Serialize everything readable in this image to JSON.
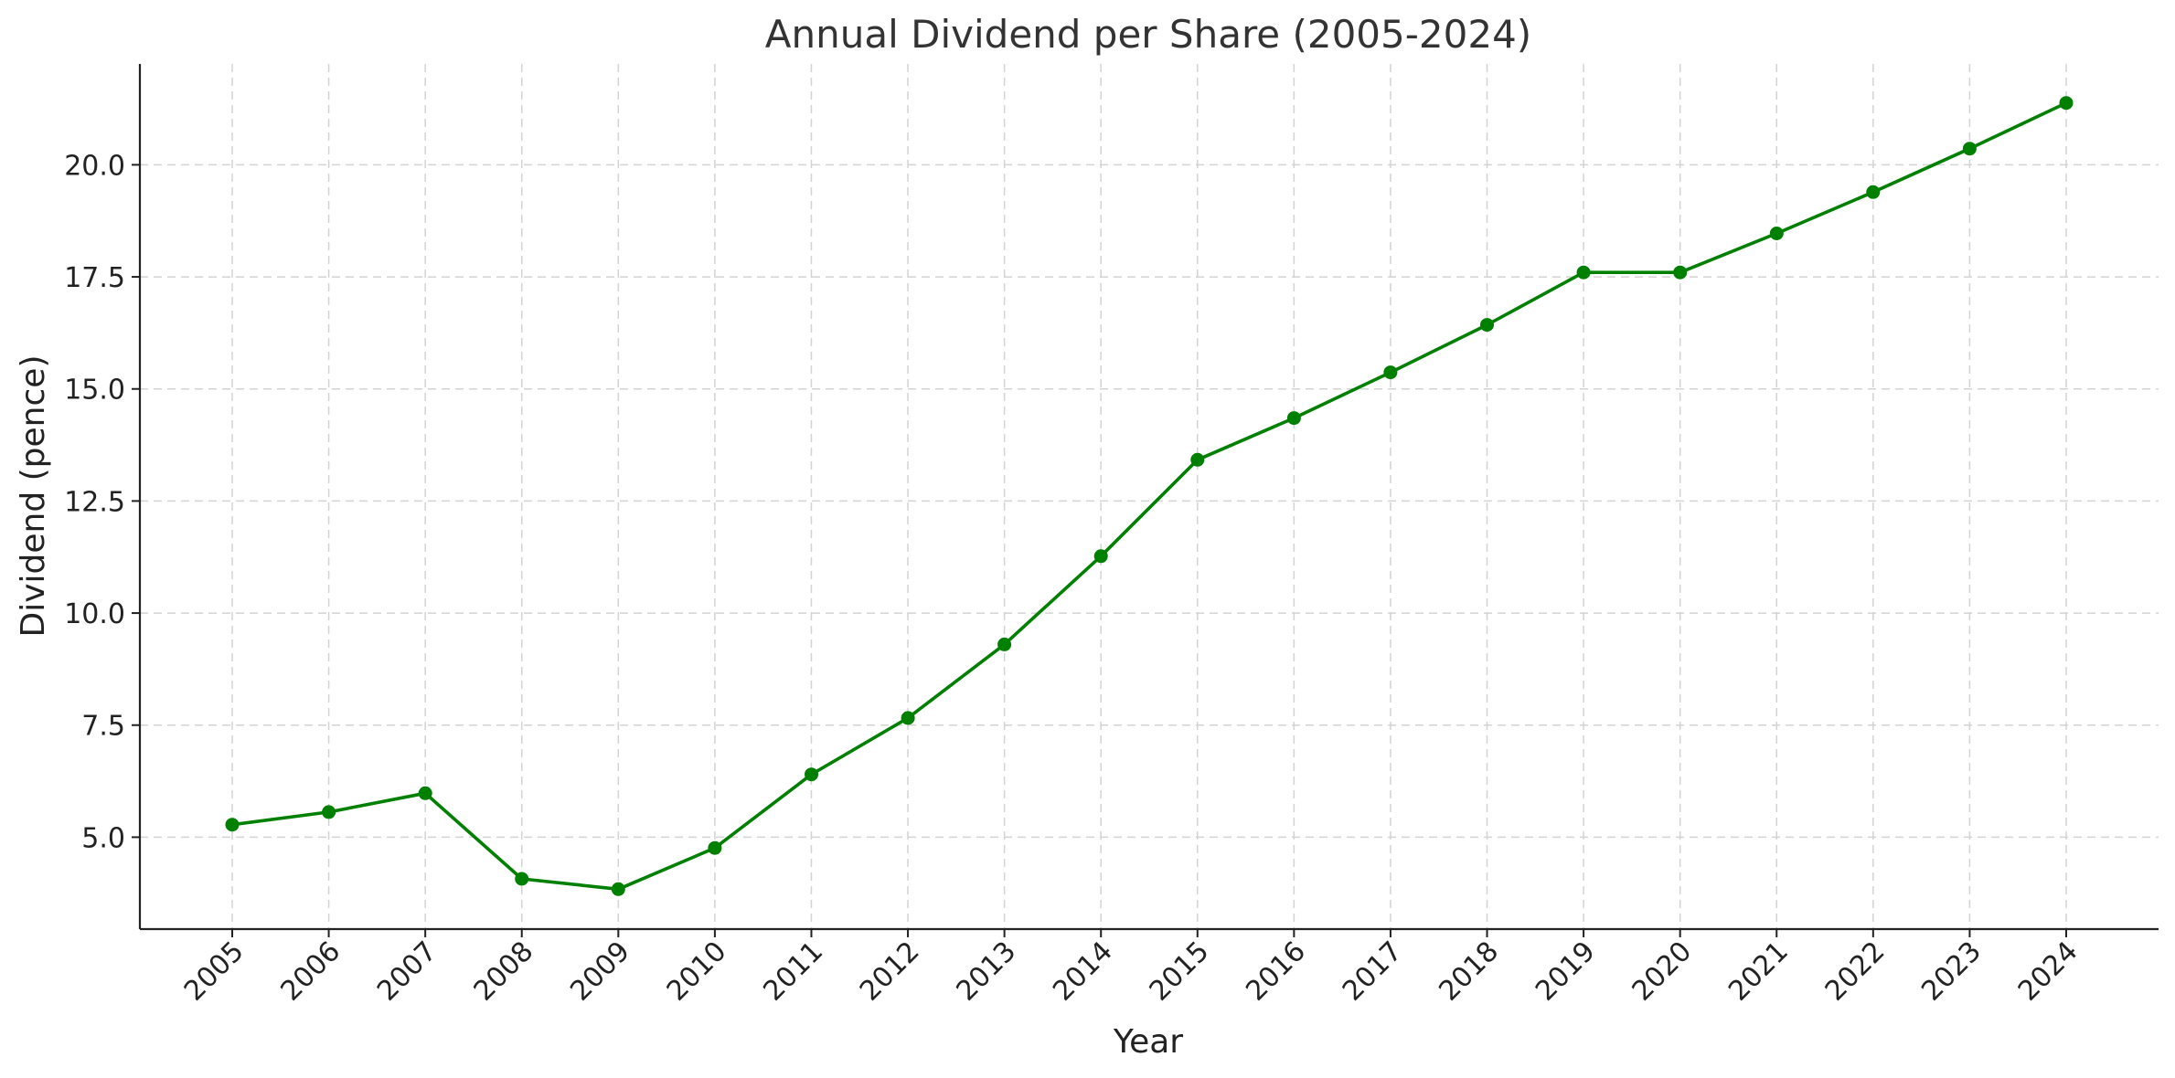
{
  "chart_data": {
    "type": "line",
    "title": "Annual Dividend per Share (2005-2024)",
    "xlabel": "Year",
    "ylabel": "Dividend (pence)",
    "x": [
      "2005",
      "2006",
      "2007",
      "2008",
      "2009",
      "2010",
      "2011",
      "2012",
      "2013",
      "2014",
      "2015",
      "2016",
      "2017",
      "2018",
      "2019",
      "2020",
      "2021",
      "2022",
      "2023",
      "2024"
    ],
    "series": [
      {
        "values": [
          5.28,
          5.56,
          5.98,
          4.07,
          3.84,
          4.76,
          6.4,
          7.66,
          9.3,
          11.27,
          13.42,
          14.35,
          15.37,
          16.43,
          17.6,
          17.6,
          18.47,
          19.39,
          20.36,
          21.38
        ],
        "color": "#008000",
        "marker": "circle"
      }
    ],
    "yticks": [
      "5.0",
      "7.5",
      "10.0",
      "12.5",
      "15.0",
      "17.5",
      "20.0"
    ],
    "ylim": [
      2.95,
      22.25
    ],
    "grid": true,
    "legend": "none"
  }
}
